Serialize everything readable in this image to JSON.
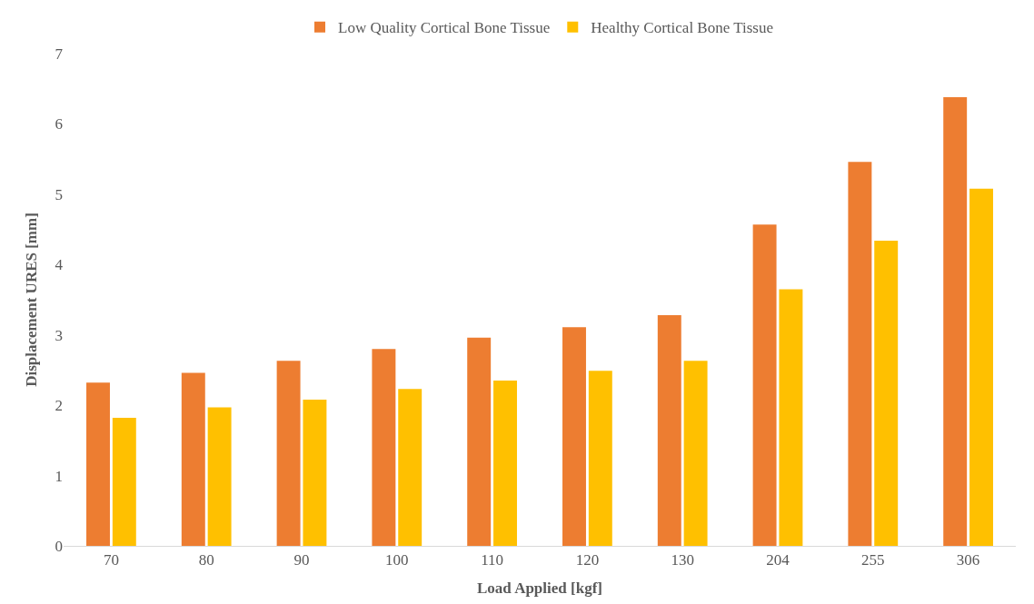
{
  "chart_data": {
    "type": "bar",
    "xlabel": "Load Applied [kgf]",
    "ylabel": "Displacement URES [mm]",
    "categories": [
      "70",
      "80",
      "90",
      "100",
      "110",
      "120",
      "130",
      "204",
      "255",
      "306"
    ],
    "series": [
      {
        "name": "Low Quality Cortical Bone Tissue",
        "color": "#ed7d31",
        "values": [
          2.32,
          2.46,
          2.63,
          2.8,
          2.96,
          3.11,
          3.28,
          4.57,
          5.46,
          6.38
        ]
      },
      {
        "name": "Healthy Cortical Bone Tissue",
        "color": "#ffc000",
        "values": [
          1.82,
          1.97,
          2.08,
          2.23,
          2.35,
          2.49,
          2.63,
          3.65,
          4.34,
          5.08
        ]
      }
    ],
    "ylim": [
      0,
      7
    ],
    "yticks": [
      0,
      1,
      2,
      3,
      4,
      5,
      6,
      7
    ],
    "legend": "top"
  }
}
